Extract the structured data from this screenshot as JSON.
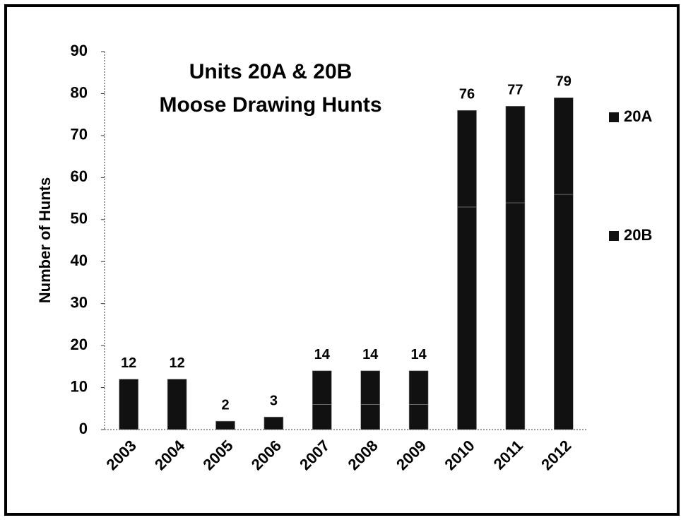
{
  "chart_data": {
    "type": "stacked_bar",
    "title": [
      "Units 20A & 20B",
      "Moose Drawing Hunts"
    ],
    "y_label": "Number of Hunts",
    "categories": [
      "2003",
      "2004",
      "2005",
      "2006",
      "2007",
      "2008",
      "2009",
      "2010",
      "2011",
      "2012"
    ],
    "series": [
      {
        "name": "20B",
        "color": "#111111",
        "values": [
          0,
          0,
          0,
          0,
          6,
          6,
          6,
          53,
          54,
          56
        ]
      },
      {
        "name": "20A",
        "color": "#111111",
        "values": [
          12,
          12,
          2,
          3,
          8,
          8,
          8,
          23,
          23,
          23
        ]
      }
    ],
    "total_labels": [
      "12",
      "12",
      "2",
      "3",
      "14",
      "14",
      "14",
      "76",
      "77",
      "79"
    ],
    "legend_order": [
      1,
      0
    ],
    "ylim": [
      0,
      90
    ],
    "yticks": [
      0,
      10,
      20,
      30,
      40,
      50,
      60,
      70,
      80,
      90
    ],
    "grid": false,
    "legend": "right"
  }
}
